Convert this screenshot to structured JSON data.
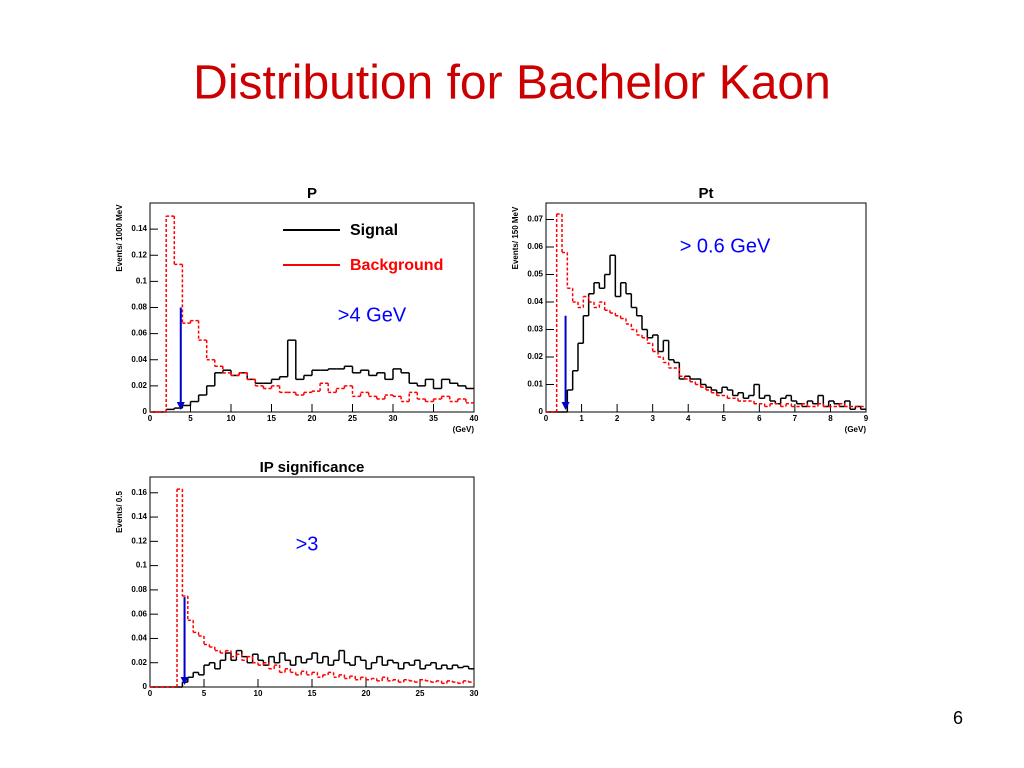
{
  "slide": {
    "title": "Distribution for Bachelor Kaon",
    "page_number": "6"
  },
  "chart_data": [
    {
      "type": "histogram",
      "title": "P",
      "x_label": "(GeV)",
      "y_label": "Events/ 1000 MeV",
      "bins": [
        0,
        1,
        2,
        3,
        4,
        5,
        6,
        7,
        8,
        9,
        10,
        11,
        12,
        13,
        14,
        15,
        16,
        17,
        18,
        19,
        20,
        21,
        22,
        23,
        24,
        25,
        26,
        27,
        28,
        29,
        30,
        31,
        32,
        33,
        34,
        35,
        36,
        37,
        38,
        39,
        40
      ],
      "series": [
        {
          "name": "Signal",
          "color": "#000000",
          "line_style": "solid",
          "values": [
            0,
            0,
            0.002,
            0.003,
            0.005,
            0.008,
            0.013,
            0.02,
            0.03,
            0.032,
            0.028,
            0.03,
            0.025,
            0.022,
            0.022,
            0.025,
            0.027,
            0.055,
            0.025,
            0.028,
            0.032,
            0.032,
            0.033,
            0.033,
            0.035,
            0.03,
            0.032,
            0.028,
            0.03,
            0.025,
            0.033,
            0.03,
            0.022,
            0.02,
            0.025,
            0.018,
            0.025,
            0.022,
            0.02,
            0.018
          ]
        },
        {
          "name": "Background",
          "color": "#ff0000",
          "line_style": "dashed",
          "values": [
            0,
            0,
            0.15,
            0.113,
            0.068,
            0.07,
            0.055,
            0.04,
            0.035,
            0.03,
            0.028,
            0.03,
            0.025,
            0.02,
            0.018,
            0.02,
            0.015,
            0.015,
            0.013,
            0.015,
            0.016,
            0.022,
            0.015,
            0.018,
            0.02,
            0.012,
            0.015,
            0.012,
            0.01,
            0.013,
            0.012,
            0.008,
            0.015,
            0.01,
            0.008,
            0.01,
            0.012,
            0.008,
            0.01,
            0.007
          ]
        }
      ],
      "xlim": [
        0,
        40
      ],
      "xticks": [
        0,
        5,
        10,
        15,
        20,
        25,
        30,
        35,
        40
      ],
      "ylim": [
        0,
        0.16
      ],
      "yticks": [
        0,
        0.02,
        0.04,
        0.06,
        0.08,
        0.1,
        0.12,
        0.14
      ],
      "legend": "upper right",
      "cut": {
        "x": 3.8,
        "y": 0.08,
        "color": "#0000cc"
      },
      "annotation": {
        "text": ">4 GeV",
        "color": "#0000ff"
      }
    },
    {
      "type": "histogram",
      "title": "Pt",
      "x_label": "(GeV)",
      "y_label": "Events/ 150 MeV",
      "bins": [
        0,
        0.15,
        0.3,
        0.45,
        0.6,
        0.75,
        0.9,
        1.05,
        1.2,
        1.35,
        1.5,
        1.65,
        1.8,
        1.95,
        2.1,
        2.25,
        2.4,
        2.55,
        2.7,
        2.85,
        3,
        3.15,
        3.3,
        3.45,
        3.6,
        3.75,
        3.9,
        4.05,
        4.2,
        4.35,
        4.5,
        4.65,
        4.8,
        4.95,
        5.1,
        5.25,
        5.4,
        5.55,
        5.7,
        5.85,
        6,
        6.15,
        6.3,
        6.45,
        6.6,
        6.75,
        6.9,
        7.05,
        7.2,
        7.35,
        7.5,
        7.65,
        7.8,
        7.95,
        8.1,
        8.25,
        8.4,
        8.55,
        8.7,
        8.85,
        9
      ],
      "series": [
        {
          "color": "#000000",
          "line_style": "solid",
          "values": [
            0,
            0,
            0,
            0,
            0.008,
            0.015,
            0.025,
            0.035,
            0.043,
            0.047,
            0.045,
            0.05,
            0.057,
            0.042,
            0.047,
            0.043,
            0.038,
            0.035,
            0.03,
            0.027,
            0.028,
            0.022,
            0.026,
            0.019,
            0.018,
            0.012,
            0.013,
            0.012,
            0.012,
            0.01,
            0.009,
            0.008,
            0.007,
            0.009,
            0.008,
            0.006,
            0.007,
            0.005,
            0.006,
            0.01,
            0.005,
            0.006,
            0.004,
            0.003,
            0.005,
            0.006,
            0.004,
            0.003,
            0.002,
            0.004,
            0.003,
            0.006,
            0.002,
            0.004,
            0.003,
            0.002,
            0.004,
            0.001,
            0.002,
            0.001
          ]
        },
        {
          "color": "#ff0000",
          "line_style": "dashed",
          "values": [
            0,
            0,
            0.072,
            0.058,
            0.045,
            0.04,
            0.038,
            0.042,
            0.04,
            0.038,
            0.04,
            0.037,
            0.036,
            0.035,
            0.034,
            0.032,
            0.03,
            0.028,
            0.027,
            0.025,
            0.022,
            0.02,
            0.018,
            0.016,
            0.016,
            0.013,
            0.012,
            0.011,
            0.01,
            0.009,
            0.008,
            0.007,
            0.006,
            0.006,
            0.005,
            0.005,
            0.004,
            0.004,
            0.004,
            0.003,
            0.003,
            0.002,
            0.003,
            0.003,
            0.002,
            0.003,
            0.002,
            0.002,
            0.003,
            0.002,
            0.002,
            0.003,
            0.002,
            0.002,
            0.002,
            0.003,
            0.002,
            0.002,
            0.002,
            0.002
          ]
        }
      ],
      "xlim": [
        0,
        9
      ],
      "xticks": [
        0,
        1,
        2,
        3,
        4,
        5,
        6,
        7,
        8,
        9
      ],
      "ylim": [
        0,
        0.076
      ],
      "yticks": [
        0,
        0.01,
        0.02,
        0.03,
        0.04,
        0.05,
        0.06,
        0.07
      ],
      "cut": {
        "x": 0.55,
        "y": 0.035,
        "color": "#0000cc"
      },
      "annotation": {
        "text": "> 0.6 GeV",
        "color": "#0000ff"
      }
    },
    {
      "type": "histogram",
      "title": "IP significance",
      "y_label": "Events/ 0.5",
      "bins": [
        0,
        0.5,
        1,
        1.5,
        2,
        2.5,
        3,
        3.5,
        4,
        4.5,
        5,
        5.5,
        6,
        6.5,
        7,
        7.5,
        8,
        8.5,
        9,
        9.5,
        10,
        10.5,
        11,
        11.5,
        12,
        12.5,
        13,
        13.5,
        14,
        14.5,
        15,
        15.5,
        16,
        16.5,
        17,
        17.5,
        18,
        18.5,
        19,
        19.5,
        20,
        20.5,
        21,
        21.5,
        22,
        22.5,
        23,
        23.5,
        24,
        24.5,
        25,
        25.5,
        26,
        26.5,
        27,
        27.5,
        28,
        28.5,
        29,
        29.5,
        30
      ],
      "series": [
        {
          "color": "#000000",
          "line_style": "solid",
          "values": [
            0,
            0,
            0,
            0,
            0,
            0,
            0.004,
            0.008,
            0.012,
            0.01,
            0.018,
            0.02,
            0.015,
            0.022,
            0.028,
            0.022,
            0.03,
            0.025,
            0.02,
            0.027,
            0.022,
            0.018,
            0.025,
            0.02,
            0.028,
            0.022,
            0.018,
            0.025,
            0.02,
            0.023,
            0.028,
            0.02,
            0.025,
            0.018,
            0.022,
            0.03,
            0.02,
            0.018,
            0.025,
            0.022,
            0.015,
            0.02,
            0.025,
            0.018,
            0.022,
            0.02,
            0.015,
            0.02,
            0.018,
            0.022,
            0.015,
            0.018,
            0.02,
            0.015,
            0.018,
            0.015,
            0.018,
            0.016,
            0.017,
            0.015
          ]
        },
        {
          "color": "#ff0000",
          "line_style": "dashed",
          "values": [
            0,
            0,
            0,
            0,
            0,
            0.163,
            0.075,
            0.055,
            0.045,
            0.042,
            0.035,
            0.033,
            0.03,
            0.028,
            0.03,
            0.025,
            0.027,
            0.022,
            0.025,
            0.02,
            0.018,
            0.02,
            0.015,
            0.018,
            0.012,
            0.015,
            0.012,
            0.01,
            0.013,
            0.01,
            0.012,
            0.008,
            0.01,
            0.012,
            0.008,
            0.01,
            0.007,
            0.009,
            0.006,
            0.008,
            0.006,
            0.007,
            0.005,
            0.008,
            0.005,
            0.006,
            0.004,
            0.006,
            0.005,
            0.004,
            0.006,
            0.005,
            0.004,
            0.005,
            0.003,
            0.005,
            0.004,
            0.003,
            0.005,
            0.004
          ]
        }
      ],
      "xlim": [
        0,
        30
      ],
      "xticks": [
        0,
        5,
        10,
        15,
        20,
        25,
        30
      ],
      "ylim": [
        0,
        0.173
      ],
      "yticks": [
        0,
        0.02,
        0.04,
        0.06,
        0.08,
        0.1,
        0.12,
        0.14,
        0.16
      ],
      "cut": {
        "x": 3.2,
        "y": 0.074,
        "color": "#0000cc"
      },
      "annotation": {
        "text": ">3",
        "color": "#0000ff"
      }
    }
  ]
}
